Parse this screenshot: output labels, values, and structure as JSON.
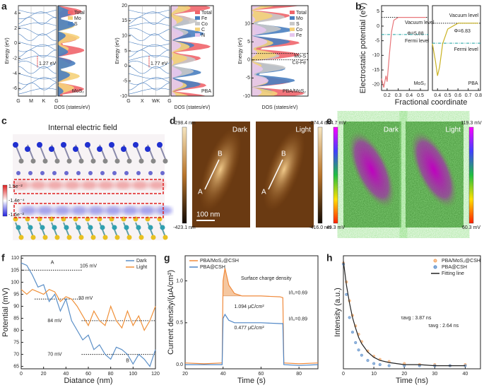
{
  "panel_labels": [
    "a",
    "b",
    "c",
    "d",
    "e",
    "f",
    "g",
    "h"
  ],
  "a": {
    "plots": [
      {
        "ylim": [
          -7,
          5
        ],
        "yticks": [
          -6,
          -4,
          -2,
          0,
          2,
          4
        ],
        "xlabels": [
          "G",
          "M",
          "K",
          "G"
        ],
        "gap": "1.27 eV",
        "ylabel": "Energy (eV)",
        "doslabel": "DOS (states/eV)",
        "tag": "MoS₂",
        "legend": [
          {
            "name": "Total",
            "color": "#f0656b"
          },
          {
            "name": "Mo",
            "color": "#f5d27a"
          },
          {
            "name": "S",
            "color": "#4a7fc0"
          }
        ]
      },
      {
        "ylim": [
          -10,
          20
        ],
        "yticks": [
          -10,
          -5,
          0,
          5,
          10,
          15,
          20
        ],
        "xlabels": [
          "G",
          "X",
          "WK",
          "G"
        ],
        "gap": "1.77 eV",
        "ylabel": "Energy (eV)",
        "doslabel": "DOS (states/eV)",
        "tag": "PBA",
        "legend": [
          {
            "name": "Total",
            "color": "#f0656b"
          },
          {
            "name": "Fe",
            "color": "#4a7fc0"
          },
          {
            "name": "Co",
            "color": "#c8c8c8"
          },
          {
            "name": "C",
            "color": "#f5d27a"
          },
          {
            "name": "N",
            "color": "#e6c6ee"
          }
        ]
      },
      {
        "ylim": [
          -10,
          15
        ],
        "yticks": [
          -10,
          -5,
          0,
          5,
          10
        ],
        "ylabel": "Energy (eV)",
        "doslabel": "DOS (states/eV)",
        "tag": "PBA/MoS₂",
        "annotations": [
          "Mo-S",
          "Co-Fe"
        ],
        "legend": [
          {
            "name": "Total",
            "color": "#f0656b"
          },
          {
            "name": "Mo",
            "color": "#4a7fc0"
          },
          {
            "name": "S",
            "color": "#c8c8c8"
          },
          {
            "name": "Co",
            "color": "#f5d27a"
          },
          {
            "name": "Fe",
            "color": "#e6c6ee"
          }
        ]
      }
    ]
  },
  "b": {
    "xlabel": "Fractional coordinate",
    "ylabel": "Electrostatic potential (eV)"
  },
  "c": {
    "title": "Internal electric field",
    "colorbar": [
      "1.5e⁻²",
      "-1.4e⁻⁴",
      "-1.5e⁻²"
    ]
  },
  "d": {
    "left_top": "-298.4 nm",
    "left_bottom": "-423.1 nm",
    "right_top": "-274.4 nm",
    "right_bottom": "-416.0 nm",
    "dark": "Dark",
    "light": "Light",
    "point_a": "A",
    "point_b": "B",
    "scale": "100 nm"
  },
  "e": {
    "left_top": "104.7 mV",
    "left_bottom": "49.3 mV",
    "right_top": "119.3 mV",
    "right_bottom": "60.3 mV",
    "dark": "Dark",
    "light": "Light"
  },
  "chart_data": [
    {
      "type": "line",
      "x": [
        0.15,
        0.17,
        0.19,
        0.2,
        0.22,
        0.24,
        0.26,
        0.3,
        0.4,
        0.55
      ],
      "xlim": [
        0.15,
        0.57
      ],
      "xticks": [
        0.2,
        0.3,
        0.4,
        0.5
      ],
      "ylim": [
        -22,
        7
      ],
      "yticks": [
        -20,
        -15,
        -10,
        -5,
        0,
        5
      ],
      "series": [
        {
          "name": "MoS₂",
          "color": "#e8767a",
          "values": [
            -18,
            -21,
            -17,
            -19,
            -10,
            -2,
            2,
            3,
            3,
            3
          ]
        }
      ],
      "vacuum_level": 3,
      "fermi_level": -2.88,
      "annotations": [
        "Vacuum level",
        "Fermi level",
        "Φ=5.88",
        "MoS₂"
      ]
    },
    {
      "type": "line",
      "x": [
        0.35,
        0.38,
        0.4,
        0.42,
        0.45,
        0.5,
        0.6,
        0.8
      ],
      "xlim": [
        0.35,
        0.82
      ],
      "xticks": [
        0.4,
        0.5,
        0.6,
        0.7,
        0.8
      ],
      "ylim": [
        -22,
        7
      ],
      "series": [
        {
          "name": "PBA",
          "color": "#c9b222",
          "values": [
            -6,
            -12,
            -17,
            -14,
            -6,
            -1,
            1,
            1
          ]
        }
      ],
      "vacuum_level": 1,
      "fermi_level": -5.83,
      "annotations": [
        "Vacuum level",
        "Fermi level",
        "Φ=6.83",
        "PBA"
      ]
    },
    {
      "type": "line",
      "xlabel": "Diatance (nm)",
      "ylabel": "Potential (mV)",
      "legend": "upper right",
      "x": [
        0,
        5,
        10,
        15,
        20,
        25,
        30,
        35,
        40,
        45,
        50,
        55,
        60,
        65,
        70,
        75,
        80,
        85,
        90,
        95,
        100,
        105,
        110,
        115,
        120
      ],
      "xlim": [
        0,
        120
      ],
      "xticks": [
        0,
        20,
        40,
        60,
        80,
        100,
        120
      ],
      "ylim": [
        64,
        111
      ],
      "yticks": [
        65,
        70,
        75,
        80,
        85,
        90,
        95,
        100,
        105,
        110
      ],
      "series": [
        {
          "name": "Dark",
          "color": "#5b8fc7",
          "values": [
            108,
            107,
            103,
            98,
            99,
            92,
            95,
            88,
            93,
            84,
            80,
            76,
            78,
            72,
            74,
            70,
            68,
            73,
            72,
            70,
            66,
            70,
            68,
            65,
            72
          ]
        },
        {
          "name": "Light",
          "color": "#f0913a",
          "values": [
            97,
            95,
            97,
            96,
            95,
            97,
            96,
            92,
            94,
            93,
            90,
            86,
            82,
            88,
            84,
            82,
            90,
            84,
            81,
            88,
            82,
            86,
            80,
            84,
            90
          ]
        }
      ],
      "reference_lines": [
        {
          "value": 105,
          "label": "105 mV"
        },
        {
          "value": 93,
          "label": "93 mV"
        },
        {
          "value": 84,
          "label": "84 mV"
        },
        {
          "value": 70,
          "label": "70 mV"
        }
      ],
      "annotations": [
        "A",
        "B"
      ]
    },
    {
      "type": "line",
      "xlabel": "Time (s)",
      "ylabel": "Current density/(μA/cm²)",
      "legend": "upper left",
      "x": [
        20,
        30,
        39.5,
        40,
        41,
        43,
        46,
        50,
        60,
        70,
        71.5,
        72,
        80,
        90
      ],
      "xlim": [
        20,
        90
      ],
      "xticks": [
        20,
        40,
        60,
        80
      ],
      "ylim": [
        -0.05,
        1.3
      ],
      "yticks": [
        {
          "value": 0,
          "label": "0.0"
        },
        0.5,
        {
          "value": 1,
          "label": "1.0"
        }
      ],
      "series": [
        {
          "name": "PBA/MoS₂@CSH",
          "color": "#f08a3c",
          "values": [
            0.02,
            0.01,
            0.02,
            1.0,
            1.15,
            0.95,
            0.85,
            0.82,
            0.82,
            0.81,
            0.8,
            0.02,
            0.01,
            0.02
          ]
        },
        {
          "name": "PBA@CSH",
          "color": "#4f86c6",
          "values": [
            0,
            0,
            0,
            0.55,
            0.6,
            0.53,
            0.5,
            0.5,
            0.5,
            0.49,
            0.49,
            0,
            -0.01,
            0
          ]
        }
      ],
      "annotations": [
        "Surface charge density",
        "1.094 μC/cm²",
        "0.477 μC/cm²",
        "I/I₀=0.69",
        "I/I₀=0.89"
      ]
    },
    {
      "type": "scatter",
      "xlabel": "Time (ns)",
      "ylabel": "Intensity (a.u.)",
      "legend": "upper right",
      "x": [
        0,
        1,
        2,
        3,
        4,
        5,
        6,
        8,
        10,
        12,
        15,
        20,
        25,
        30,
        35,
        40
      ],
      "xlim": [
        0,
        45
      ],
      "xticks": [
        0,
        10,
        20,
        30,
        40
      ],
      "ylim": [
        -0.03,
        1.05
      ],
      "series": [
        {
          "name": "PBA/MoS₂@CSH",
          "color": "#f5a15a",
          "mark": "circle",
          "values": [
            0.98,
            0.8,
            0.62,
            0.48,
            0.38,
            0.3,
            0.23,
            0.14,
            0.09,
            0.06,
            0.04,
            0.02,
            0.01,
            0.01,
            0,
            0.01
          ]
        },
        {
          "name": "PBA@CSH",
          "color": "#4f86c6",
          "mark": "circle",
          "values": [
            0.97,
            0.68,
            0.46,
            0.32,
            0.22,
            0.15,
            0.1,
            0.05,
            0.02,
            0.01,
            0,
            0,
            0,
            0,
            0,
            0
          ]
        },
        {
          "name": "Fitting line",
          "color": "#222222",
          "mark": "line",
          "values": [
            1.0,
            0.77,
            0.6,
            0.46,
            0.36,
            0.27,
            0.21,
            0.13,
            0.08,
            0.05,
            0.03,
            0.01,
            0.01,
            0,
            0,
            0
          ]
        }
      ],
      "annotations": [
        "τavg : 3.87 ns",
        "τavg : 2.64 ns"
      ]
    }
  ]
}
